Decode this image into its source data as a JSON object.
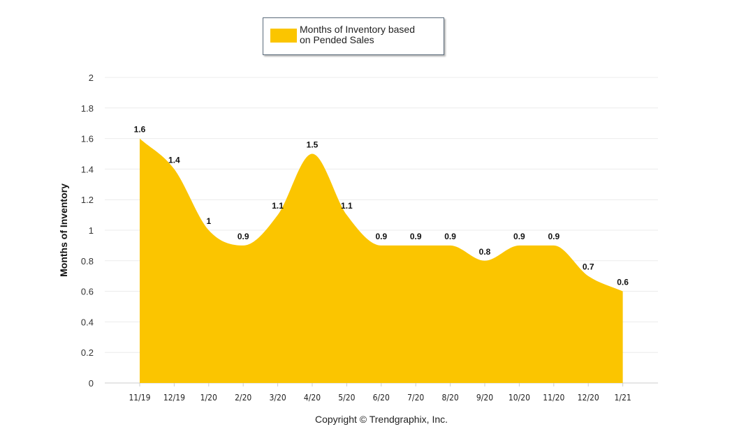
{
  "chart_data": {
    "type": "area",
    "title": "",
    "xlabel": "",
    "ylabel": "Months of Inventory",
    "categories": [
      "11/19",
      "12/19",
      "1/20",
      "2/20",
      "3/20",
      "4/20",
      "5/20",
      "6/20",
      "7/20",
      "8/20",
      "9/20",
      "10/20",
      "11/20",
      "12/20",
      "1/21"
    ],
    "series": [
      {
        "name": "Months of Inventory based on Pended Sales",
        "color": "#fbc500",
        "values": [
          1.6,
          1.4,
          1.0,
          0.9,
          1.1,
          1.5,
          1.1,
          0.9,
          0.9,
          0.9,
          0.8,
          0.9,
          0.9,
          0.7,
          0.6
        ],
        "data_labels": [
          "1.6",
          "1.4",
          "1",
          "0.9",
          "1.1",
          "1.5",
          "1.1",
          "0.9",
          "0.9",
          "0.9",
          "0.8",
          "0.9",
          "0.9",
          "0.7",
          "0.6"
        ]
      }
    ],
    "ylim": [
      0,
      2
    ],
    "yticks": [
      0,
      0.2,
      0.4,
      0.6,
      0.8,
      1,
      1.2,
      1.4,
      1.6,
      1.8,
      2
    ],
    "ytick_labels": [
      "0",
      "0.2",
      "0.4",
      "0.6",
      "0.8",
      "1",
      "1.2",
      "1.4",
      "1.6",
      "1.8",
      "2"
    ],
    "grid": true,
    "legend_position": "top-center",
    "smooth": true
  },
  "legend": {
    "label_line1": "Months of Inventory based",
    "label_line2": "on Pended Sales"
  },
  "footer": {
    "copyright": "Copyright © Trendgraphix, Inc."
  }
}
